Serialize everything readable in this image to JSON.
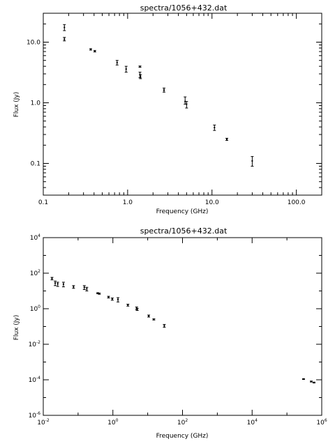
{
  "chart_data": [
    {
      "type": "scatter",
      "title": "spectra/1056+432.dat",
      "xlabel": "Frequency (GHz)",
      "ylabel": "Flux (Jy)",
      "x_scale": "log",
      "y_scale": "log",
      "xlim": [
        0.1,
        200
      ],
      "ylim": [
        0.03,
        30
      ],
      "xticks": [
        {
          "v": 0.1,
          "label": "0.1"
        },
        {
          "v": 1,
          "label": "1.0"
        },
        {
          "v": 10,
          "label": "10.0"
        },
        {
          "v": 100,
          "label": "100.0"
        }
      ],
      "yticks": [
        {
          "v": 0.1,
          "label": "0.1"
        },
        {
          "v": 1,
          "label": "1.0"
        },
        {
          "v": 10,
          "label": "10.0"
        }
      ],
      "points": [
        {
          "x": 0.178,
          "y": 17.5,
          "lo": 15.5,
          "hi": 19.5
        },
        {
          "x": 0.178,
          "y": 11.2,
          "lo": 10.5,
          "hi": 12.0
        },
        {
          "x": 0.365,
          "y": 7.6,
          "lo": 7.4,
          "hi": 7.8
        },
        {
          "x": 0.408,
          "y": 7.1,
          "lo": 6.9,
          "hi": 7.3
        },
        {
          "x": 0.75,
          "y": 4.6,
          "lo": 4.2,
          "hi": 5.0
        },
        {
          "x": 0.96,
          "y": 3.6,
          "lo": 3.2,
          "hi": 4.0
        },
        {
          "x": 1.4,
          "y": 3.95,
          "lo": 3.85,
          "hi": 4.05
        },
        {
          "x": 1.4,
          "y": 2.9,
          "lo": 2.6,
          "hi": 3.2
        },
        {
          "x": 1.42,
          "y": 2.7,
          "lo": 2.5,
          "hi": 2.9
        },
        {
          "x": 2.7,
          "y": 1.62,
          "lo": 1.5,
          "hi": 1.75
        },
        {
          "x": 4.8,
          "y": 1.05,
          "lo": 0.95,
          "hi": 1.25
        },
        {
          "x": 5.0,
          "y": 0.95,
          "lo": 0.82,
          "hi": 1.05
        },
        {
          "x": 10.7,
          "y": 0.39,
          "lo": 0.35,
          "hi": 0.43
        },
        {
          "x": 15.0,
          "y": 0.25,
          "lo": 0.24,
          "hi": 0.26
        },
        {
          "x": 30.0,
          "y": 0.11,
          "lo": 0.09,
          "hi": 0.13
        }
      ]
    },
    {
      "type": "scatter",
      "title": "spectra/1056+432.dat",
      "xlabel": "Frequency (GHz)",
      "ylabel": "Flux (Jy)",
      "x_scale": "log",
      "y_scale": "log",
      "xlim": [
        0.01,
        1000000
      ],
      "ylim": [
        1e-06,
        10000
      ],
      "xticks": [
        {
          "v": 0.01,
          "base": "10",
          "exp": "-2"
        },
        {
          "v": 1,
          "base": "10",
          "exp": "0"
        },
        {
          "v": 100,
          "base": "10",
          "exp": "2"
        },
        {
          "v": 10000,
          "base": "10",
          "exp": "4"
        },
        {
          "v": 1000000,
          "base": "10",
          "exp": "6"
        }
      ],
      "yticks": [
        {
          "v": 1e-06,
          "base": "10",
          "exp": "-6"
        },
        {
          "v": 0.0001,
          "base": "10",
          "exp": "-4"
        },
        {
          "v": 0.01,
          "base": "10",
          "exp": "-2"
        },
        {
          "v": 1,
          "base": "10",
          "exp": "0"
        },
        {
          "v": 100,
          "base": "10",
          "exp": "2"
        },
        {
          "v": 10000,
          "base": "10",
          "exp": "4"
        }
      ],
      "points": [
        {
          "x": 0.0178,
          "y": 50,
          "lo": 42,
          "hi": 58
        },
        {
          "x": 0.022,
          "y": 28,
          "lo": 20,
          "hi": 36
        },
        {
          "x": 0.026,
          "y": 25,
          "lo": 18,
          "hi": 31
        },
        {
          "x": 0.038,
          "y": 24,
          "lo": 17,
          "hi": 31
        },
        {
          "x": 0.074,
          "y": 17,
          "lo": 14,
          "hi": 20
        },
        {
          "x": 0.151,
          "y": 16,
          "lo": 12,
          "hi": 20
        },
        {
          "x": 0.178,
          "y": 13,
          "lo": 10,
          "hi": 16
        },
        {
          "x": 0.365,
          "y": 7.6,
          "lo": 7,
          "hi": 8
        },
        {
          "x": 0.408,
          "y": 7.1,
          "lo": 6.5,
          "hi": 7.5
        },
        {
          "x": 0.75,
          "y": 4.6,
          "lo": 4,
          "hi": 5
        },
        {
          "x": 0.96,
          "y": 3.6,
          "lo": 3,
          "hi": 4
        },
        {
          "x": 1.4,
          "y": 3.3,
          "lo": 2.4,
          "hi": 4.2
        },
        {
          "x": 2.7,
          "y": 1.6,
          "lo": 1.4,
          "hi": 1.8
        },
        {
          "x": 4.8,
          "y": 1.05,
          "lo": 0.9,
          "hi": 1.25
        },
        {
          "x": 5.0,
          "y": 0.95,
          "lo": 0.8,
          "hi": 1.05
        },
        {
          "x": 10.7,
          "y": 0.39,
          "lo": 0.34,
          "hi": 0.44
        },
        {
          "x": 15.0,
          "y": 0.25,
          "lo": 0.23,
          "hi": 0.27
        },
        {
          "x": 30.0,
          "y": 0.11,
          "lo": 0.09,
          "hi": 0.13
        },
        {
          "x": 300000,
          "y": 0.00011,
          "lo": 0.000105,
          "hi": 0.000115
        },
        {
          "x": 500000,
          "y": 8e-05,
          "lo": 7.5e-05,
          "hi": 8.5e-05
        },
        {
          "x": 600000,
          "y": 7e-05,
          "lo": 6.6e-05,
          "hi": 7.4e-05
        }
      ]
    }
  ]
}
